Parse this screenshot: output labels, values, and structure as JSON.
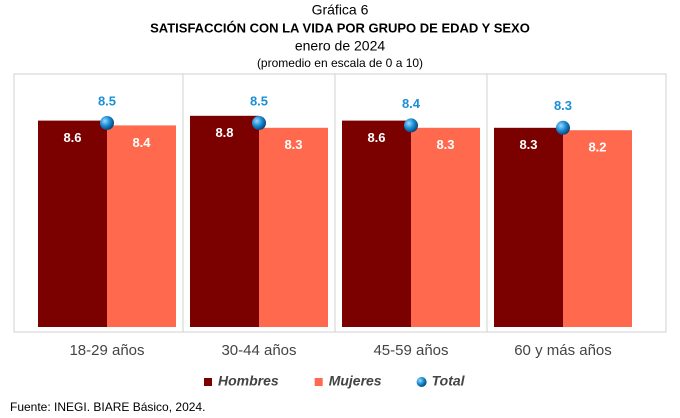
{
  "chart_data": {
    "type": "bar",
    "caption": "Gráfica 6",
    "title": "SATISFACCIÓN CON LA VIDA POR GRUPO DE EDAD Y SEXO",
    "subtitle": "enero de 2024",
    "note": "(promedio en escala de 0 a 10)",
    "categories": [
      "18-29 años",
      "30-44 años",
      "45-59 años",
      "60 y más años"
    ],
    "series": [
      {
        "name": "Hombres",
        "color": "#7b0000",
        "values": [
          8.6,
          8.8,
          8.6,
          8.3
        ]
      },
      {
        "name": "Mujeres",
        "color": "#ff6a4f",
        "values": [
          8.4,
          8.3,
          8.3,
          8.2
        ]
      },
      {
        "name": "Total",
        "color": "#1b8fd6",
        "style": "marker",
        "values": [
          8.5,
          8.5,
          8.4,
          8.3
        ]
      }
    ],
    "ylim": [
      0,
      10
    ],
    "source": "Fuente: INEGI. BIARE Básico, 2024."
  }
}
